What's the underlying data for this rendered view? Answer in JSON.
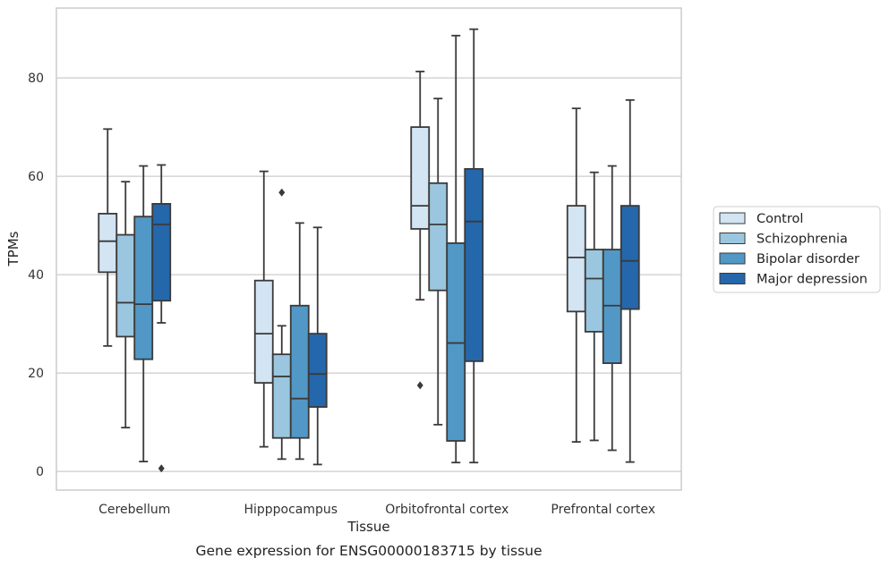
{
  "chart_data": {
    "type": "box",
    "caption": "Gene expression for ENSG00000183715 by tissue",
    "xlabel": "Tissue",
    "ylabel": "TPMs",
    "ylim": [
      -3.8,
      94.2
    ],
    "yticks": [
      0,
      20,
      40,
      60,
      80
    ],
    "grid": "horizontal",
    "legend_position": "right",
    "categories": [
      "Cerebellum",
      "Hipppocampus",
      "Orbitofrontal cortex",
      "Prefrontal cortex"
    ],
    "series": [
      {
        "name": "Control",
        "color": "#d3e4f3",
        "boxes": [
          {
            "whislo": 25.5,
            "q1": 40.5,
            "med": 46.8,
            "q3": 52.4,
            "whishi": 69.6,
            "fliers": []
          },
          {
            "whislo": 5.0,
            "q1": 18.0,
            "med": 28.0,
            "q3": 38.8,
            "whishi": 61.0,
            "fliers": []
          },
          {
            "whislo": 34.9,
            "q1": 49.3,
            "med": 54.0,
            "q3": 70.0,
            "whishi": 81.3,
            "fliers": [
              17.5
            ]
          },
          {
            "whislo": 6.0,
            "q1": 32.5,
            "med": 43.5,
            "q3": 54.0,
            "whishi": 73.8,
            "fliers": []
          }
        ]
      },
      {
        "name": "Schizophrenia",
        "color": "#9ac7df",
        "boxes": [
          {
            "whislo": 8.9,
            "q1": 27.4,
            "med": 34.3,
            "q3": 48.1,
            "whishi": 58.9,
            "fliers": []
          },
          {
            "whislo": 2.5,
            "q1": 6.8,
            "med": 19.3,
            "q3": 23.8,
            "whishi": 29.6,
            "fliers": [
              56.7
            ]
          },
          {
            "whislo": 9.5,
            "q1": 36.8,
            "med": 50.2,
            "q3": 58.6,
            "whishi": 75.8,
            "fliers": []
          },
          {
            "whislo": 6.3,
            "q1": 28.4,
            "med": 39.2,
            "q3": 45.1,
            "whishi": 60.8,
            "fliers": []
          }
        ]
      },
      {
        "name": "Bipolar disorder",
        "color": "#5298c6",
        "boxes": [
          {
            "whislo": 2.0,
            "q1": 22.8,
            "med": 34.0,
            "q3": 51.8,
            "whishi": 62.1,
            "fliers": []
          },
          {
            "whislo": 2.5,
            "q1": 6.8,
            "med": 14.8,
            "q3": 33.7,
            "whishi": 50.5,
            "fliers": []
          },
          {
            "whislo": 1.8,
            "q1": 6.2,
            "med": 26.1,
            "q3": 46.4,
            "whishi": 88.6,
            "fliers": []
          },
          {
            "whislo": 4.3,
            "q1": 22.0,
            "med": 33.7,
            "q3": 45.1,
            "whishi": 62.1,
            "fliers": []
          }
        ]
      },
      {
        "name": "Major depression",
        "color": "#2567ab",
        "boxes": [
          {
            "whislo": 30.2,
            "q1": 34.7,
            "med": 50.2,
            "q3": 54.4,
            "whishi": 62.3,
            "fliers": [
              0.6
            ]
          },
          {
            "whislo": 1.4,
            "q1": 13.1,
            "med": 19.8,
            "q3": 28.0,
            "whishi": 49.6,
            "fliers": []
          },
          {
            "whislo": 1.8,
            "q1": 22.4,
            "med": 50.8,
            "q3": 61.5,
            "whishi": 89.9,
            "fliers": []
          },
          {
            "whislo": 1.9,
            "q1": 33.0,
            "med": 42.8,
            "q3": 54.0,
            "whishi": 75.5,
            "fliers": []
          }
        ]
      }
    ]
  }
}
